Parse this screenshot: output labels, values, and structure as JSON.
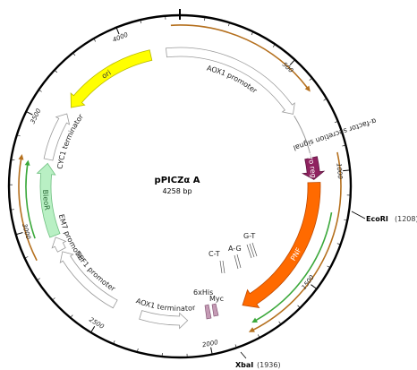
{
  "plasmid": {
    "name": "pPICZα A",
    "size_label": "4258 bp",
    "size_bp": 4258
  },
  "colors": {
    "backbone": "#000000",
    "ori": "#ffff00",
    "bleoR": "#b9f0c4",
    "pnf": "#ff6a00",
    "pro_region": "#8f2260",
    "orf_green": "#3aa83a",
    "orf_brown": "#b5701e",
    "promoter_outline": "#9a9a9a"
  },
  "ticks": [
    {
      "bp": 500,
      "label": "500"
    },
    {
      "bp": 1000,
      "label": "1000"
    },
    {
      "bp": 1500,
      "label": "1500"
    },
    {
      "bp": 2000,
      "label": "2000"
    },
    {
      "bp": 2500,
      "label": "2500"
    },
    {
      "bp": 3000,
      "label": "3000"
    },
    {
      "bp": 3500,
      "label": "3500"
    },
    {
      "bp": 4000,
      "label": "4000"
    }
  ],
  "features": [
    {
      "id": "ori",
      "label": "ori",
      "start": 3618,
      "end": 4110,
      "dir": "reverse",
      "kind": "ori"
    },
    {
      "id": "aox1-promoter",
      "label": "AOX1 promoter",
      "start": 4190,
      "end": 680,
      "dir": "forward",
      "kind": "promoter"
    },
    {
      "id": "alpha-factor",
      "label": "α-factor secretion signal",
      "start": 690,
      "end": 1000,
      "dir": "forward",
      "kind": "signal"
    },
    {
      "id": "pro-region",
      "label": "Pro reg...",
      "start": 920,
      "end": 1030,
      "dir": "forward",
      "kind": "pro"
    },
    {
      "id": "pnf",
      "label": "PNF",
      "start": 1045,
      "end": 1800,
      "dir": "forward",
      "kind": "pnf"
    },
    {
      "id": "aox1-terminator",
      "label": "AOX1 terminator",
      "start": 2090,
      "end": 2330,
      "dir": "reverse",
      "kind": "terminator"
    },
    {
      "id": "tef1-promoter",
      "label": "TEF1 promoter",
      "start": 2470,
      "end": 2850,
      "dir": "forward",
      "kind": "promoter"
    },
    {
      "id": "em7-promoter",
      "label": "EM7 promoter",
      "start": 2860,
      "end": 2930,
      "dir": "forward",
      "kind": "promoter"
    },
    {
      "id": "bleoR",
      "label": "BleoR",
      "start": 2940,
      "end": 3310,
      "dir": "forward",
      "kind": "cds"
    },
    {
      "id": "cyc1-terminator",
      "label": "CYC1 terminator",
      "start": 3330,
      "end": 3580,
      "dir": "forward",
      "kind": "terminator"
    }
  ],
  "tags": [
    {
      "id": "6xhis",
      "label": "6xHis"
    },
    {
      "id": "myc",
      "label": "Myc"
    }
  ],
  "mutations": [
    {
      "id": "c-t",
      "label": "C-T"
    },
    {
      "id": "a-g",
      "label": "A-G"
    },
    {
      "id": "g-t",
      "label": "G-T"
    }
  ],
  "sites": [
    {
      "id": "ecori",
      "name": "EcoRI",
      "pos": "(1208)"
    },
    {
      "id": "xbai",
      "name": "XbaI",
      "pos": "(1936)"
    }
  ]
}
